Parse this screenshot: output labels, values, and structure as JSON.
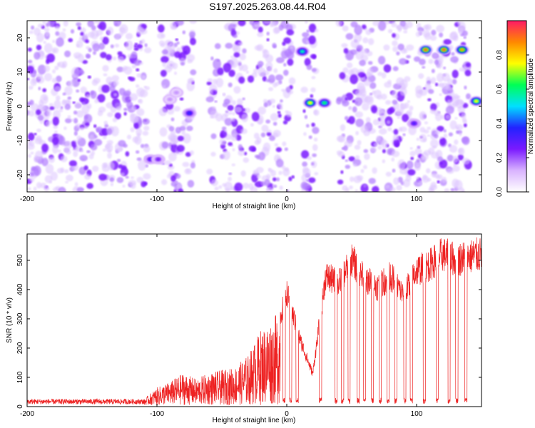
{
  "title": "S197.2025.263.08.44.R04",
  "colors": {
    "spectrogram_base": "#7a1aff",
    "snr_line": "#ee2222",
    "frame": "#000000"
  },
  "chart_data": [
    {
      "type": "heatmap",
      "name": "spectrogram",
      "xlabel": "Height of straight line (km)",
      "ylabel": "Frequency (Hz)",
      "xlim": [
        -200,
        150
      ],
      "ylim": [
        -25,
        25
      ],
      "xticks": [
        -200,
        -100,
        0,
        100
      ],
      "yticks": [
        -20,
        -10,
        0,
        10,
        20
      ],
      "xtick_labels": [
        "-200",
        "-100",
        "0",
        "100"
      ],
      "ytick_labels": [
        "-20",
        "-10",
        "0",
        "10",
        "20"
      ],
      "colorbar": {
        "label": "Normalized spectral amplitude",
        "range": [
          0,
          1
        ],
        "ticks": [
          0.0,
          0.2,
          0.4,
          0.6,
          0.8
        ],
        "tick_labels": [
          "0.0",
          "0.2",
          "0.4",
          "0.6",
          "0.8"
        ],
        "stops": [
          "#ffffff",
          "#d9b3ff",
          "#7a1aff",
          "#2222ff",
          "#00e0ff",
          "#00ff55",
          "#ffff00",
          "#ff8800",
          "#ff1a66"
        ]
      },
      "gaps_x": [
        [
          -107,
          -97
        ],
        [
          -72,
          -60
        ],
        [
          -30,
          -28
        ],
        [
          5,
          12
        ],
        [
          23,
          40
        ],
        [
          97,
          100
        ],
        [
          140,
          150
        ]
      ],
      "features": [
        {
          "x": -105,
          "y": -15.5,
          "intensity": 0.3
        },
        {
          "x": -99,
          "y": -15.5,
          "intensity": 0.25
        },
        {
          "x": -90,
          "y": 2,
          "intensity": 0.15
        },
        {
          "x": -85,
          "y": 4,
          "intensity": 0.15
        },
        {
          "x": -75,
          "y": -2,
          "intensity": 0.35
        },
        {
          "x": 12,
          "y": 16,
          "intensity": 0.55
        },
        {
          "x": 18,
          "y": 1,
          "intensity": 0.75
        },
        {
          "x": 29,
          "y": 1,
          "intensity": 0.6
        },
        {
          "x": 98,
          "y": -5,
          "intensity": 0.3
        },
        {
          "x": 107,
          "y": 16.5,
          "intensity": 0.9
        },
        {
          "x": 121,
          "y": 16.5,
          "intensity": 0.9
        },
        {
          "x": 135,
          "y": 16.5,
          "intensity": 0.85
        },
        {
          "x": 146,
          "y": 1.5,
          "intensity": 0.75
        }
      ]
    },
    {
      "type": "line",
      "name": "snr",
      "xlabel": "Height of straight line (km)",
      "ylabel": "SNR (10 * v/v)",
      "xlim": [
        -200,
        150
      ],
      "ylim": [
        0,
        590
      ],
      "xticks": [
        -200,
        -100,
        0,
        100
      ],
      "yticks": [
        0,
        100,
        200,
        300,
        400,
        500
      ],
      "xtick_labels": [
        "-200",
        "-100",
        "0",
        "100"
      ],
      "ytick_labels": [
        "0",
        "100",
        "200",
        "300",
        "400",
        "500"
      ],
      "envelope_x": [
        -200,
        -110,
        -100,
        -90,
        -80,
        -70,
        -60,
        -50,
        -40,
        -30,
        -20,
        -10,
        -5,
        0,
        10,
        20,
        30,
        40,
        50,
        60,
        70,
        80,
        90,
        100,
        110,
        120,
        130,
        140,
        150
      ],
      "envelope_y": [
        20,
        20,
        60,
        80,
        110,
        90,
        110,
        120,
        130,
        170,
        260,
        300,
        330,
        420,
        250,
        120,
        480,
        450,
        540,
        470,
        440,
        480,
        410,
        500,
        520,
        560,
        540,
        550,
        560
      ],
      "dips_x": [
        -2,
        3,
        8,
        26,
        38,
        43,
        48,
        55,
        60,
        66,
        72,
        78,
        84,
        91,
        96,
        106,
        116,
        125,
        131,
        138
      ],
      "series": [
        {
          "name": "SNR"
        }
      ]
    }
  ]
}
